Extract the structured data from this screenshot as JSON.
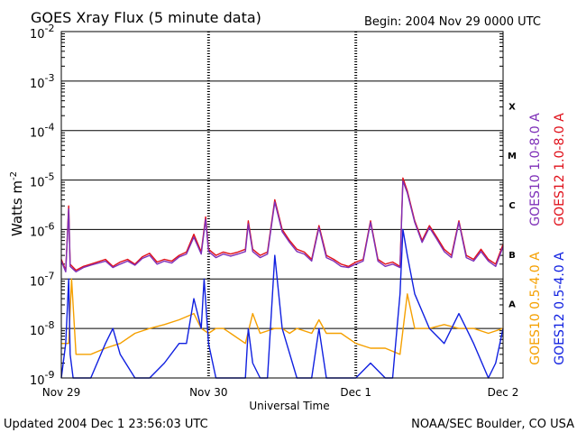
{
  "title": "GOES Xray Flux (5 minute data)",
  "begin": "Begin:  2004 Nov 29 0000 UTC",
  "footer_left": "Updated 2004 Dec  1 23:56:03 UTC",
  "footer_right": "NOAA/SEC Boulder, CO USA",
  "colors": {
    "goes10_long": "#7e2fb8",
    "goes12_long": "#e0101a",
    "goes10_short": "#f5a000",
    "goes12_short": "#1020e0",
    "grid": "#000000"
  },
  "chart_data": {
    "type": "line",
    "title": "GOES Xray Flux (5 minute data)",
    "xlabel": "Universal Time",
    "ylabel": "Watts m",
    "ylabel_sup": "-2",
    "y_scale": "log",
    "ylim_exponent": [
      -9,
      -2
    ],
    "y_ticks": [
      {
        "base": "10",
        "exp": "-2"
      },
      {
        "base": "10",
        "exp": "-3"
      },
      {
        "base": "10",
        "exp": "-4"
      },
      {
        "base": "10",
        "exp": "-5"
      },
      {
        "base": "10",
        "exp": "-6"
      },
      {
        "base": "10",
        "exp": "-7"
      },
      {
        "base": "10",
        "exp": "-8"
      },
      {
        "base": "10",
        "exp": "-9"
      }
    ],
    "x_unit": "days since 2004 Nov 29 0000 UTC",
    "xlim": [
      0,
      3
    ],
    "x_ticks": [
      {
        "value": 0,
        "label": "Nov 29"
      },
      {
        "value": 1,
        "label": "Nov 30"
      },
      {
        "value": 2,
        "label": "Dec 1"
      },
      {
        "value": 3,
        "label": "Dec 2"
      }
    ],
    "flare_classes": [
      {
        "label": "X",
        "exp": -4
      },
      {
        "label": "M",
        "exp": -5
      },
      {
        "label": "C",
        "exp": -6
      },
      {
        "label": "B",
        "exp": -7
      },
      {
        "label": "A",
        "exp": -8
      }
    ],
    "series": [
      {
        "name": "GOES12 1.0-8.0 A",
        "key": "goes12_long",
        "x": [
          0,
          0.03,
          0.05,
          0.06,
          0.1,
          0.15,
          0.2,
          0.3,
          0.35,
          0.4,
          0.45,
          0.5,
          0.55,
          0.6,
          0.65,
          0.7,
          0.75,
          0.8,
          0.85,
          0.9,
          0.95,
          0.98,
          1.0,
          1.05,
          1.1,
          1.15,
          1.2,
          1.25,
          1.27,
          1.3,
          1.35,
          1.4,
          1.45,
          1.5,
          1.55,
          1.6,
          1.65,
          1.7,
          1.75,
          1.8,
          1.85,
          1.9,
          1.95,
          2.0,
          2.05,
          2.1,
          2.15,
          2.2,
          2.25,
          2.3,
          2.32,
          2.35,
          2.4,
          2.45,
          2.5,
          2.55,
          2.6,
          2.65,
          2.7,
          2.75,
          2.8,
          2.85,
          2.9,
          2.95,
          3.0
        ],
        "y": [
          2.5e-07,
          1.5e-07,
          3e-06,
          2e-07,
          1.5e-07,
          1.8e-07,
          2e-07,
          2.5e-07,
          1.8e-07,
          2.2e-07,
          2.5e-07,
          2e-07,
          2.8e-07,
          3.3e-07,
          2.2e-07,
          2.5e-07,
          2.3e-07,
          3e-07,
          3.5e-07,
          8e-07,
          3.5e-07,
          1.8e-06,
          4e-07,
          3e-07,
          3.5e-07,
          3.2e-07,
          3.5e-07,
          4e-07,
          1.5e-06,
          4e-07,
          3e-07,
          3.5e-07,
          4e-06,
          1e-06,
          6e-07,
          4e-07,
          3.5e-07,
          2.5e-07,
          1.2e-06,
          3e-07,
          2.5e-07,
          2e-07,
          1.8e-07,
          2.2e-07,
          2.5e-07,
          1.5e-06,
          2.5e-07,
          2e-07,
          2.2e-07,
          1.8e-07,
          1.1e-05,
          6e-06,
          1.5e-06,
          6e-07,
          1.2e-06,
          7e-07,
          4e-07,
          3e-07,
          1.5e-06,
          3e-07,
          2.5e-07,
          4e-07,
          2.5e-07,
          2e-07,
          5e-07
        ]
      },
      {
        "name": "GOES10 1.0-8.0 A",
        "key": "goes10_long",
        "x": [
          0,
          0.03,
          0.05,
          0.06,
          0.1,
          0.15,
          0.2,
          0.3,
          0.35,
          0.4,
          0.45,
          0.5,
          0.55,
          0.6,
          0.65,
          0.7,
          0.75,
          0.8,
          0.85,
          0.9,
          0.95,
          0.98,
          1.0,
          1.05,
          1.1,
          1.15,
          1.2,
          1.25,
          1.27,
          1.3,
          1.35,
          1.4,
          1.45,
          1.5,
          1.55,
          1.6,
          1.65,
          1.7,
          1.75,
          1.8,
          1.85,
          1.9,
          1.95,
          2.0,
          2.05,
          2.1,
          2.15,
          2.2,
          2.25,
          2.3,
          2.32,
          2.35,
          2.4,
          2.45,
          2.5,
          2.55,
          2.6,
          2.65,
          2.7,
          2.75,
          2.8,
          2.85,
          2.9,
          2.95,
          3.0
        ],
        "y": [
          2.3e-07,
          1.4e-07,
          2.6e-06,
          1.8e-07,
          1.4e-07,
          1.7e-07,
          1.9e-07,
          2.3e-07,
          1.7e-07,
          2e-07,
          2.3e-07,
          1.9e-07,
          2.6e-07,
          3e-07,
          2e-07,
          2.3e-07,
          2.1e-07,
          2.8e-07,
          3.2e-07,
          7e-07,
          3.2e-07,
          1.6e-06,
          3.6e-07,
          2.7e-07,
          3.2e-07,
          2.9e-07,
          3.2e-07,
          3.6e-07,
          1.3e-06,
          3.6e-07,
          2.7e-07,
          3.2e-07,
          3.6e-06,
          9e-07,
          5.5e-07,
          3.6e-07,
          3.2e-07,
          2.3e-07,
          1.1e-06,
          2.7e-07,
          2.3e-07,
          1.8e-07,
          1.7e-07,
          2e-07,
          2.3e-07,
          1.4e-06,
          2.3e-07,
          1.8e-07,
          2e-07,
          1.7e-07,
          9.5e-06,
          5.5e-06,
          1.4e-06,
          5.5e-07,
          1.1e-06,
          6.4e-07,
          3.6e-07,
          2.7e-07,
          1.4e-06,
          2.7e-07,
          2.3e-07,
          3.6e-07,
          2.3e-07,
          1.8e-07,
          4.5e-07
        ]
      },
      {
        "name": "GOES10 0.5-4.0 A",
        "key": "goes10_short",
        "x": [
          0,
          0.05,
          0.07,
          0.1,
          0.15,
          0.2,
          0.3,
          0.4,
          0.5,
          0.6,
          0.7,
          0.8,
          0.9,
          0.95,
          1.0,
          1.05,
          1.1,
          1.15,
          1.25,
          1.3,
          1.35,
          1.45,
          1.5,
          1.55,
          1.6,
          1.7,
          1.75,
          1.8,
          1.9,
          2.0,
          2.1,
          2.2,
          2.3,
          2.35,
          2.4,
          2.5,
          2.6,
          2.7,
          2.8,
          2.9,
          3.0
        ],
        "y": [
          5e-09,
          5e-09,
          1e-07,
          3e-09,
          3e-09,
          3e-09,
          4e-09,
          5e-09,
          8e-09,
          1e-08,
          1.2e-08,
          1.5e-08,
          2e-08,
          1e-08,
          8e-09,
          1e-08,
          1e-08,
          8e-09,
          5e-09,
          2e-08,
          8e-09,
          1e-08,
          1e-08,
          8e-09,
          1e-08,
          8e-09,
          1.5e-08,
          8e-09,
          8e-09,
          5e-09,
          4e-09,
          4e-09,
          3e-09,
          5e-08,
          1e-08,
          1e-08,
          1.2e-08,
          1e-08,
          1e-08,
          8e-09,
          1e-08
        ]
      },
      {
        "name": "GOES12 0.5-4.0 A",
        "key": "goes12_short",
        "x": [
          0,
          0.03,
          0.05,
          0.06,
          0.08,
          0.12,
          0.2,
          0.3,
          0.35,
          0.4,
          0.5,
          0.55,
          0.6,
          0.7,
          0.8,
          0.85,
          0.9,
          0.95,
          0.97,
          1.0,
          1.05,
          1.1,
          1.15,
          1.2,
          1.25,
          1.27,
          1.3,
          1.35,
          1.4,
          1.45,
          1.5,
          1.6,
          1.7,
          1.75,
          1.8,
          1.9,
          2.0,
          2.1,
          2.2,
          2.25,
          2.3,
          2.32,
          2.35,
          2.4,
          2.5,
          2.6,
          2.7,
          2.75,
          2.8,
          2.9,
          2.95,
          3.0
        ],
        "y": [
          1e-09,
          5e-09,
          1e-07,
          3e-09,
          1e-09,
          1e-09,
          1e-09,
          5e-09,
          1e-08,
          3e-09,
          1e-09,
          1e-09,
          1e-09,
          2e-09,
          5e-09,
          5e-09,
          4e-08,
          1e-08,
          1e-07,
          5e-09,
          1e-09,
          1e-09,
          1e-09,
          1e-09,
          1e-09,
          1e-08,
          2e-09,
          1e-09,
          1e-09,
          3e-07,
          1e-08,
          1e-09,
          1e-09,
          1e-08,
          1e-09,
          1e-09,
          1e-09,
          2e-09,
          1e-09,
          1e-09,
          5e-08,
          1e-06,
          3e-07,
          5e-08,
          1e-08,
          5e-09,
          2e-08,
          1e-08,
          5e-09,
          1e-09,
          2e-09,
          1e-08
        ]
      }
    ]
  }
}
